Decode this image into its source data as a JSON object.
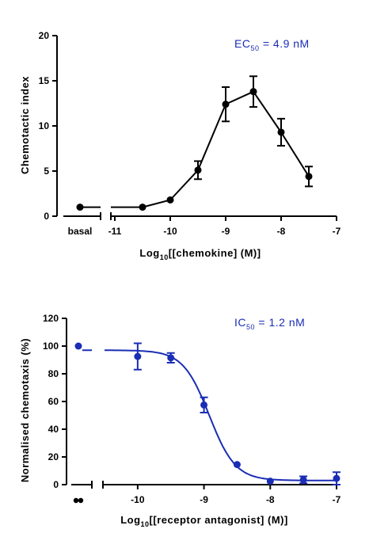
{
  "chart_data": [
    {
      "type": "line",
      "color": "#000000",
      "xlabel_prefix": "Log",
      "xlabel_sub": "10",
      "xlabel_suffix": "[[chemokine] (M)]",
      "ylabel": "Chemotactic index",
      "annotation_prefix": "EC",
      "annotation_sub": "50",
      "annotation_suffix": " = 4.9 nM",
      "xlim": [
        -11,
        -7
      ],
      "ylim": [
        0,
        20
      ],
      "xticks": [
        "-11",
        "-10",
        "-9",
        "-8",
        "-7"
      ],
      "yticks": [
        "0",
        "5",
        "10",
        "15",
        "20"
      ],
      "basal_label": "basal",
      "basal": {
        "y": 1.0
      },
      "series": [
        {
          "x": [
            -10.5,
            -10,
            -9.5,
            -9,
            -8.5,
            -8,
            -7.5
          ],
          "y": [
            1.0,
            1.8,
            5.1,
            12.4,
            13.8,
            9.3,
            4.4
          ],
          "err": [
            0.0,
            0.0,
            1.0,
            1.9,
            1.7,
            1.5,
            1.1
          ]
        }
      ]
    },
    {
      "type": "scatter",
      "color": "#1a2db5",
      "xlabel_prefix": "Log",
      "xlabel_sub": "10",
      "xlabel_suffix": "[[receptor antagonist] (M)]",
      "ylabel": "Normalised chemotaxis (%)",
      "annotation_prefix": "IC",
      "annotation_sub": "50",
      "annotation_suffix": " = 1.2 nM",
      "xlim": [
        -10.5,
        -7
      ],
      "ylim": [
        0,
        120
      ],
      "xticks": [
        "-10",
        "-9",
        "-8",
        "-7"
      ],
      "yticks": [
        "0",
        "20",
        "40",
        "60",
        "80",
        "100",
        "120"
      ],
      "control": {
        "y": 100
      },
      "fit": {
        "top": 97,
        "bottom": 3,
        "log_ic50": -8.92,
        "hill": -2.2
      },
      "series": [
        {
          "x": [
            -10,
            -9.5,
            -9,
            -8.5,
            -8,
            -7.5,
            -7
          ],
          "y": [
            92.5,
            91.5,
            57.5,
            14.5,
            2.5,
            3.5,
            4.5
          ],
          "err": [
            9.5,
            3.5,
            5.5,
            0.0,
            0.0,
            2.5,
            4.5
          ]
        }
      ]
    }
  ]
}
